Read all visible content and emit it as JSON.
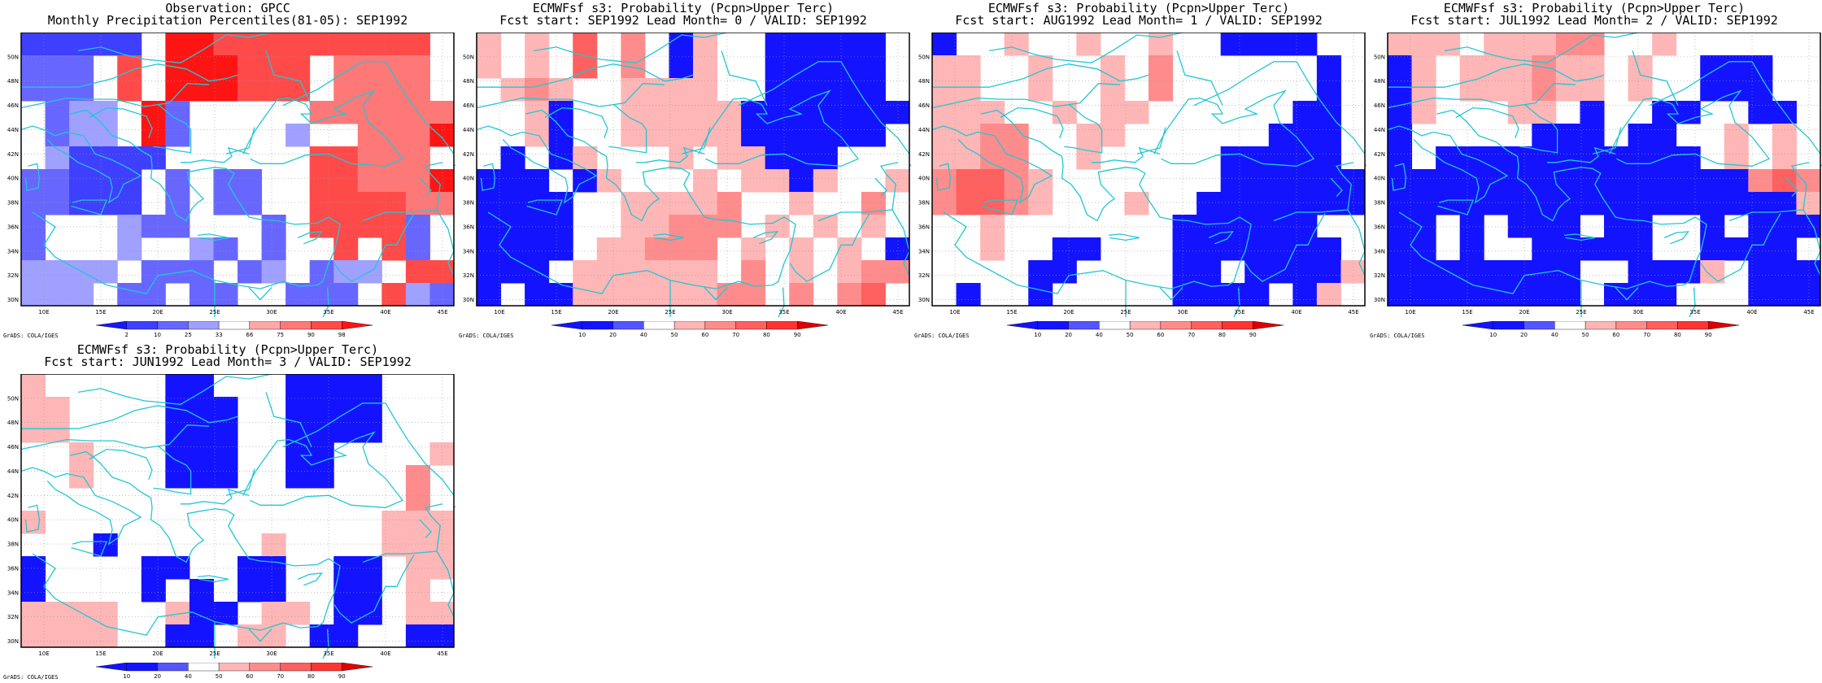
{
  "colors": {
    "obs": {
      "bins": [
        2,
        10,
        25,
        33,
        66,
        75,
        90,
        98
      ],
      "colors": [
        "#1717ff",
        "#3f3fff",
        "#6767ff",
        "#a0a0ff",
        "#ffffff",
        "#ffa8a8",
        "#ff7878",
        "#ff4a4a",
        "#ff1414"
      ]
    },
    "prob": {
      "bins": [
        10,
        20,
        40,
        50,
        60,
        70,
        80,
        90
      ],
      "colors": [
        "#1313ff",
        "#1313ff",
        "#5555ff",
        "#ffffff",
        "#ffb6b6",
        "#ff8c8c",
        "#ff6060",
        "#ff3434",
        "#e00000"
      ]
    },
    "coast": "#22c7d2"
  },
  "axes": {
    "lon_ticks": [
      "10E",
      "15E",
      "20E",
      "25E",
      "30E",
      "35E",
      "40E",
      "45E"
    ],
    "lat_ticks": [
      "30N",
      "32N",
      "34N",
      "36N",
      "38N",
      "40N",
      "42N",
      "44N",
      "46N",
      "48N",
      "50N"
    ]
  },
  "panels": [
    {
      "title1": "Observation: GPCC",
      "title2": "Monthly Precipitation Percentiles(81-05): SEP1992",
      "scale": "obs",
      "cbar_labels": [
        "2",
        "10",
        "25",
        "33",
        "66",
        "75",
        "90",
        "98"
      ],
      "footer": "GrADS: COLA/IGES",
      "grid": [
        "CCCCC 00111111111",
        "AAA 1 000111 2222",
        "AAA 1 000111 2222",
        " ABB 0A     222222",
        " ABB 0A    B  2220",
        " BCCCC      11222",
        "AACCC A AA  112220",
        "AACCC A AA  111122",
        "A   BAA   A 1111A ",
        "A   B  BA A  1 1A ",
        "BBBB AAA AB ABB 11",
        "BBB AA AA  AAA 1BA"
      ]
    },
    {
      "title1": "ECMWFsf s3: Probability (Pcpn>Upper Terc)",
      "title2": "Fcst start: SEP1992  Lead Month= 0 / VALID: SEP1992",
      "scale": "prob",
      "cbar_labels": [
        "10",
        "20",
        "40",
        "50",
        "60",
        "70",
        "80",
        "90"
      ],
      "footer": "GrADS: COLA/IGES",
      "grid": [
        "4 4 6 5 B4  BBBBB",
        "4 4 6 5 B4  BBBBB",
        " 454  4444  BBBBB",
        "  4B  44444BBBBBBB",
        "  4B  44444BBBBBB ",
        " B B4   4 44BBB  ",
        "BBB B4   4 44B4  4",
        "BBBB  44445  4  5 ",
        "BBBB  44555 4 4 4 ",
        "BBBB 44555 4 4 4 B",
        "BBB 444444 5 4 455B",
        "B BB44444455 5 56 "
      ]
    },
    {
      "title1": "ECMWFsf s3: Probability (Pcpn>Upper Terc)",
      "title2": "Fcst start: AUG1992  Lead Month= 1 / VALID: SEP1992",
      "scale": "prob",
      "cbar_labels": [
        "10",
        "20",
        "40",
        "50",
        "60",
        "70",
        "80",
        "90"
      ],
      "footer": "GrADS: COLA/IGES",
      "grid": [
        "B  4  4  4  BBBB ",
        "44  4  4 5      B",
        "44  4  4 5      B",
        "444  4 44      BB",
        "4455  44      BBB",
        "4455  4     BBBBB",
        "56654       BBBBBB",
        "56654   4  BBBBBBB",
        "  4       BBBBBB ",
        "  4  BB   BBBBBBB",
        "    BB    BB BBBB4",
        " B  B     BBBB B4"
      ]
    },
    {
      "title1": "ECMWFsf s3: Probability (Pcpn>Upper Terc)",
      "title2": "Fcst start: JUL1992  Lead Month= 2 / VALID: SEP1992",
      "scale": "prob",
      "cbar_labels": [
        "10",
        "20",
        "40",
        "50",
        "60",
        "70",
        "80",
        "90"
      ],
      "footer": "GrADS: COLA/IGES",
      "grid": [
        "444 44455  4     ",
        "B4 444544 4  BBB ",
        "B4 444544 4  BBB ",
        "B4   44 B  BB  BB",
        "B     BBB BB  4 4",
        "B BBBBBBBBBBB 4 4",
        "BBBBBBBBBBBBBBB565",
        "BBBBBBBBBBBBBBBBB4",
        "BB B BBB BB  B BBB",
        "BB B  BBBBB  BBBB ",
        "BBBBBBBB  BBB4 BBB",
        "BBBBBBBB BBB   BBB"
      ]
    },
    {
      "title1": "ECMWFsf s3: Probability (Pcpn>Upper Terc)",
      "title2": "Fcst start: JUN1992  Lead Month= 3 / VALID: SEP1992",
      "scale": "prob",
      "cbar_labels": [
        "10",
        "20",
        "40",
        "50",
        "60",
        "70",
        "80",
        "90"
      ],
      "footer": "GrADS: COLA/IGES",
      "grid": [
        "4     BB   BBBB   ",
        "44    BBB  BBBB   ",
        "44    BBB  BBBB   ",
        "  4   BBB  BB    4",
        "  4   BBB  BB   5 ",
        "                5 ",
        "4              444",
        "   B      4    444",
        "B    BB  BB  BB 44",
        "B    B B BB  BB 4 ",
        "4444  4BB 44 BB 44",
        "4444  BB 44 BB  BB"
      ]
    }
  ]
}
